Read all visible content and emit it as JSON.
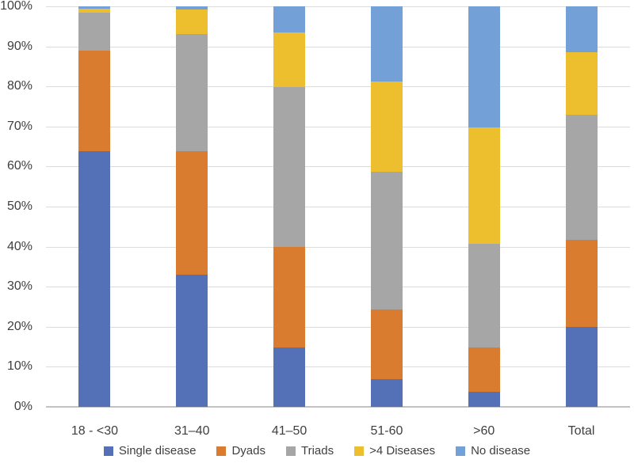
{
  "chart_data": {
    "type": "bar",
    "stacked": true,
    "percent_stacked": true,
    "title": "",
    "xlabel": "",
    "ylabel": "",
    "categories": [
      "18 - <30",
      "31–40",
      "41–50",
      "51-60",
      ">60",
      "Total"
    ],
    "series": [
      {
        "name": "Single disease",
        "color": "#5470b6",
        "values": [
          63.8,
          33.0,
          14.8,
          6.9,
          3.8,
          19.9
        ]
      },
      {
        "name": "Dyads",
        "color": "#d97c30",
        "values": [
          25.2,
          30.8,
          25.1,
          17.4,
          11.1,
          21.9
        ]
      },
      {
        "name": "Triads",
        "color": "#a6a6a6",
        "values": [
          9.5,
          29.2,
          39.9,
          34.4,
          25.8,
          31.1
        ]
      },
      {
        "name": ">4 Diseases",
        "color": "#edbf2f",
        "values": [
          1.0,
          6.2,
          13.7,
          22.5,
          29.1,
          15.7
        ]
      },
      {
        "name": "No disease",
        "color": "#73a0d6",
        "values": [
          0.5,
          0.8,
          6.5,
          18.8,
          30.2,
          11.4
        ]
      }
    ],
    "y_ticks": [
      "0%",
      "10%",
      "20%",
      "30%",
      "40%",
      "50%",
      "60%",
      "70%",
      "80%",
      "90%",
      "100%"
    ],
    "ylim": [
      0,
      100
    ],
    "grid": true,
    "legend_position": "bottom"
  },
  "style": {
    "gridline_color": "#dcdcdc",
    "axis_line_color": "#c2c2c2",
    "text_color": "#3f3f3f",
    "background": "#ffffff"
  }
}
